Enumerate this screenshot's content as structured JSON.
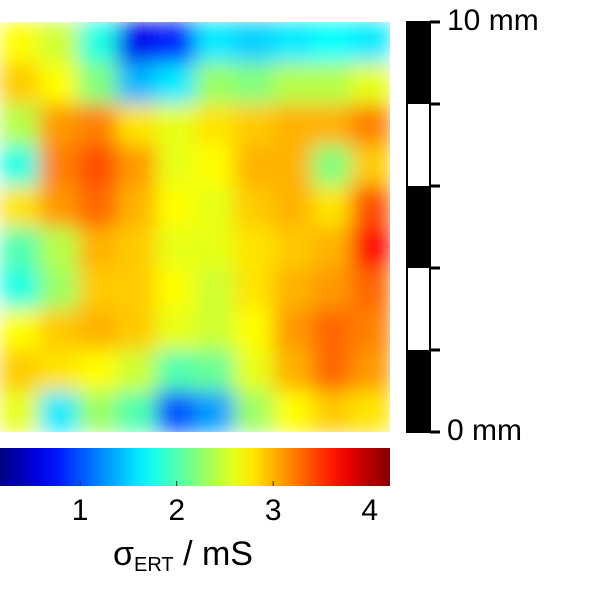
{
  "chart_data": {
    "type": "heatmap",
    "colormap": "jet",
    "values": [
      [
        2.7,
        2.5,
        1.8,
        0.6,
        0.8,
        1.6,
        1.5,
        1.6,
        1.7,
        1.6
      ],
      [
        2.9,
        2.7,
        2.2,
        1.4,
        1.6,
        2.3,
        2.2,
        2.4,
        2.4,
        2.6
      ],
      [
        2.4,
        3.1,
        3.2,
        2.8,
        2.6,
        2.8,
        2.9,
        3.0,
        3.0,
        3.2
      ],
      [
        1.8,
        3.2,
        3.4,
        3.1,
        2.6,
        2.7,
        3.0,
        3.0,
        2.2,
        2.9
      ],
      [
        2.8,
        3.1,
        3.3,
        3.0,
        2.7,
        2.6,
        2.9,
        3.0,
        2.8,
        3.4
      ],
      [
        2.0,
        2.4,
        3.0,
        2.9,
        2.6,
        2.6,
        2.8,
        2.9,
        3.0,
        3.7
      ],
      [
        1.8,
        2.3,
        2.9,
        2.9,
        2.7,
        2.5,
        2.8,
        3.0,
        3.1,
        3.3
      ],
      [
        2.7,
        2.9,
        3.0,
        2.9,
        2.6,
        2.5,
        2.7,
        3.1,
        3.3,
        3.2
      ],
      [
        2.9,
        2.8,
        2.7,
        2.5,
        2.0,
        2.1,
        2.6,
        3.0,
        3.3,
        3.1
      ],
      [
        2.6,
        1.6,
        2.3,
        2.0,
        1.0,
        1.3,
        2.3,
        2.7,
        2.9,
        2.8
      ]
    ],
    "colorbar": {
      "clim": [
        0.17,
        4.21
      ],
      "ticks": [
        1,
        2,
        3,
        4
      ],
      "label_parts": [
        "σ",
        "ERT",
        " / mS"
      ]
    },
    "scale_bar": {
      "ylim": [
        0,
        10
      ],
      "yticks": [
        0,
        2,
        4,
        6,
        8,
        10
      ],
      "ytick_labels": [
        {
          "value": 0,
          "label": "0 mm"
        },
        {
          "value": 10,
          "label": "10 mm"
        }
      ]
    }
  }
}
